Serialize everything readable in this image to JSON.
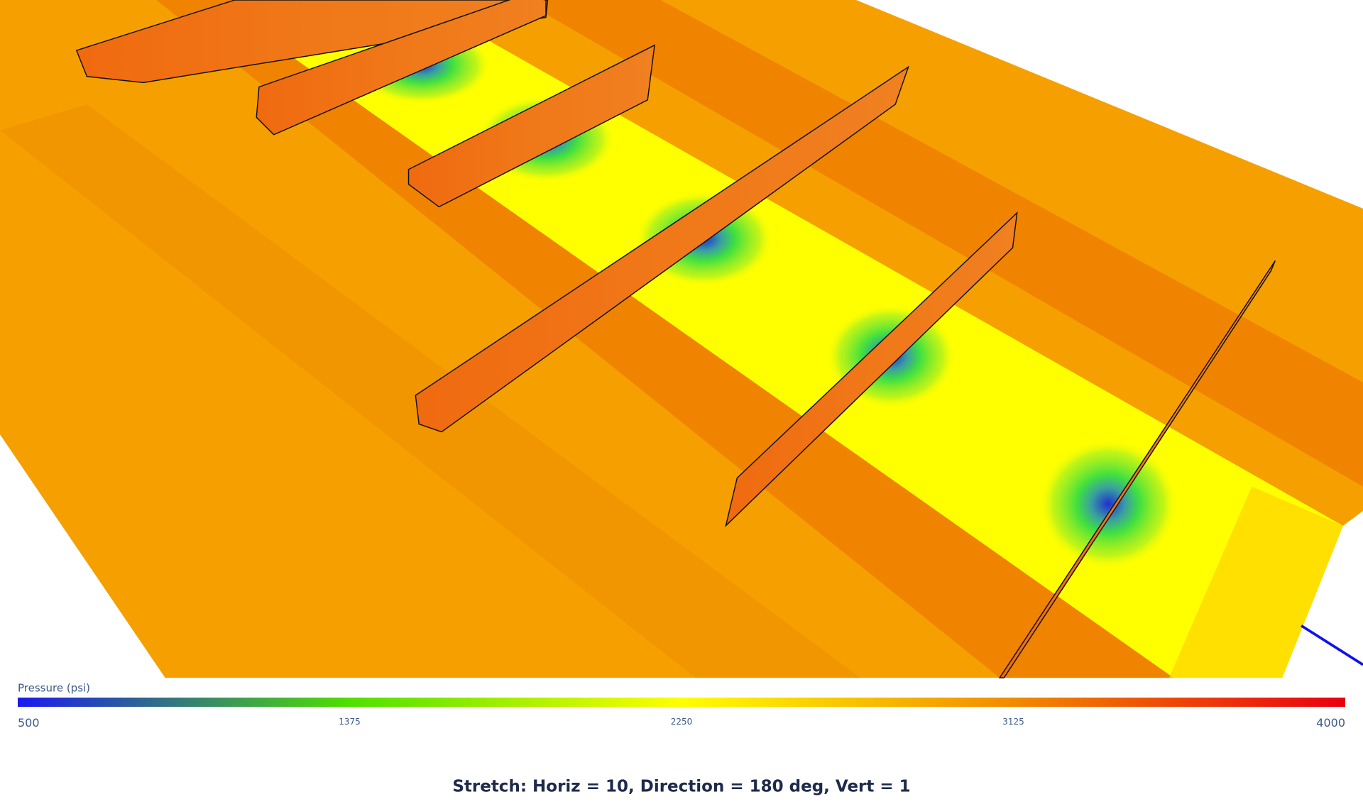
{
  "colorbar": {
    "title": "Pressure (psi)",
    "range": [
      500,
      4000
    ],
    "ticks": [
      500,
      1375,
      2250,
      3125,
      4000
    ],
    "colors": [
      "#1a1aee",
      "#4fe000",
      "#ffff00",
      "#f28a00",
      "#e80010"
    ]
  },
  "caption": "Stretch: Horiz = 10, Direction = 180 deg, Vert = 1"
}
